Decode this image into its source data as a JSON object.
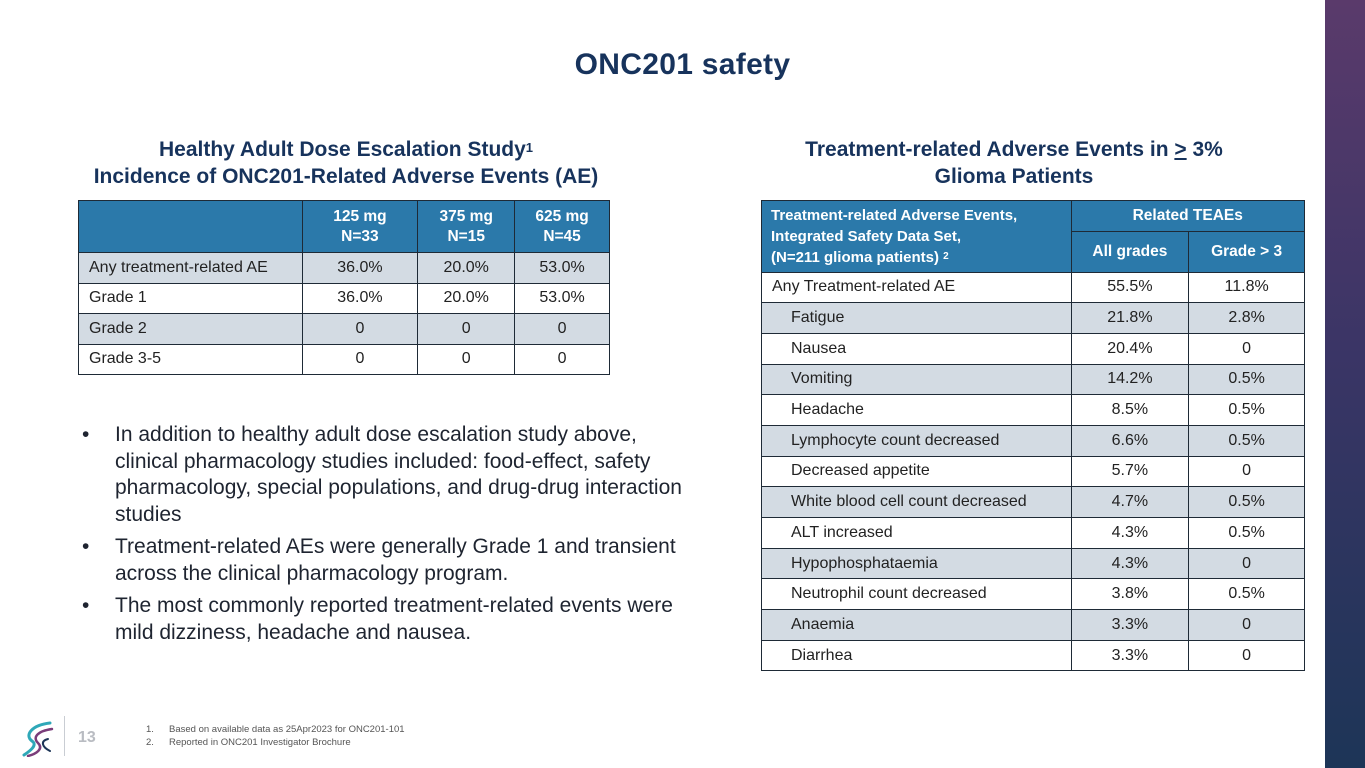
{
  "page": {
    "title": "ONC201 safety",
    "page_number": "13"
  },
  "left": {
    "heading_line1": "Healthy Adult Dose Escalation Study",
    "heading_sup": "1",
    "heading_line2": "Incidence of ONC201-Related Adverse Events (AE)",
    "table": {
      "columns": [
        {
          "dose": "125 mg",
          "n": "N=33"
        },
        {
          "dose": "375 mg",
          "n": "N=15"
        },
        {
          "dose": "625 mg",
          "n": "N=45"
        }
      ],
      "rows": [
        {
          "label": "Any treatment-related AE",
          "values": [
            "36.0%",
            "20.0%",
            "53.0%"
          ]
        },
        {
          "label": "Grade 1",
          "values": [
            "36.0%",
            "20.0%",
            "53.0%"
          ]
        },
        {
          "label": "Grade 2",
          "values": [
            "0",
            "0",
            "0"
          ]
        },
        {
          "label": "Grade 3-5",
          "values": [
            "0",
            "0",
            "0"
          ]
        }
      ]
    },
    "bullets": [
      "In addition to healthy adult dose escalation study above, clinical pharmacology studies included: food-effect, safety pharmacology, special populations, and drug-drug interaction studies",
      "Treatment-related AEs were generally Grade 1 and transient across the clinical pharmacology program.",
      "The most commonly reported treatment-related events were mild dizziness, headache and nausea."
    ],
    "bullet_symbol": "•"
  },
  "right": {
    "heading_part1": "Treatment-related Adverse Events in ",
    "heading_ge": ">",
    "heading_part2": " 3%",
    "heading_line2": "Glioma Patients",
    "table": {
      "header_label_line1": "Treatment-related Adverse Events,",
      "header_label_line2": "Integrated Safety Data Set,",
      "header_label_line3": "(N=211 glioma patients)",
      "header_label_sup": "2",
      "group_header": "Related TEAEs",
      "col1": "All grades",
      "col2": "Grade > 3",
      "rows": [
        {
          "label": "Any Treatment-related AE",
          "all": "55.5%",
          "g3": "11.8%"
        },
        {
          "label": "Fatigue",
          "all": "21.8%",
          "g3": "2.8%"
        },
        {
          "label": "Nausea",
          "all": "20.4%",
          "g3": "0"
        },
        {
          "label": "Vomiting",
          "all": "14.2%",
          "g3": "0.5%"
        },
        {
          "label": "Headache",
          "all": "8.5%",
          "g3": "0.5%"
        },
        {
          "label": "Lymphocyte count decreased",
          "all": "6.6%",
          "g3": "0.5%"
        },
        {
          "label": "Decreased appetite",
          "all": "5.7%",
          "g3": "0"
        },
        {
          "label": "White blood cell count decreased",
          "all": "4.7%",
          "g3": "0.5%"
        },
        {
          "label": "ALT increased",
          "all": "4.3%",
          "g3": "0.5%"
        },
        {
          "label": "Hypophosphataemia",
          "all": "4.3%",
          "g3": "0"
        },
        {
          "label": "Neutrophil count decreased",
          "all": "3.8%",
          "g3": "0.5%"
        },
        {
          "label": "Anaemia",
          "all": "3.3%",
          "g3": "0"
        },
        {
          "label": "Diarrhea",
          "all": "3.3%",
          "g3": "0"
        }
      ]
    }
  },
  "footnotes": [
    {
      "num": "1.",
      "text": "Based on available data as 25Apr2023 for ONC201-101"
    },
    {
      "num": "2.",
      "text": "Reported in ONC201 Investigator Brochure"
    }
  ],
  "colors": {
    "title": "#17335c",
    "table_header": "#2b79aa",
    "row_shade": "#d3dbe3",
    "side_bar_top": "#5a3a6b",
    "side_bar_bottom": "#1d3557"
  },
  "icons": {
    "logo": "company-swirl-logo"
  }
}
